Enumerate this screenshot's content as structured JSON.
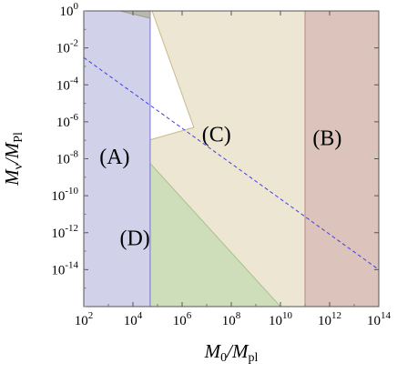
{
  "chart_data": {
    "type": "area",
    "x_scale": "log",
    "y_scale": "log",
    "x_label": {
      "main": "M",
      "sub1": "0",
      "sep": "/M",
      "sub2": "pl"
    },
    "y_label": {
      "main": "M",
      "sub1": "ν",
      "sep": "/M",
      "sub2": "Pl"
    },
    "x_range": [
      100,
      100000000000000
    ],
    "y_range": [
      1e-16,
      1
    ],
    "x_ticks": [
      {
        "value": 100,
        "base": "10",
        "exp": "2"
      },
      {
        "value": 10000,
        "base": "10",
        "exp": "4"
      },
      {
        "value": 1000000,
        "base": "10",
        "exp": "6"
      },
      {
        "value": 100000000,
        "base": "10",
        "exp": "8"
      },
      {
        "value": 10000000000,
        "base": "10",
        "exp": "10"
      },
      {
        "value": 1000000000000,
        "base": "10",
        "exp": "12"
      },
      {
        "value": 100000000000000,
        "base": "10",
        "exp": "14"
      }
    ],
    "y_ticks": [
      {
        "value": 1,
        "base": "10",
        "exp": "0"
      },
      {
        "value": 0.01,
        "base": "10",
        "exp": "-2"
      },
      {
        "value": 0.0001,
        "base": "10",
        "exp": "-4"
      },
      {
        "value": 1e-06,
        "base": "10",
        "exp": "-6"
      },
      {
        "value": 1e-08,
        "base": "10",
        "exp": "-8"
      },
      {
        "value": 1e-10,
        "base": "10",
        "exp": "-10"
      },
      {
        "value": 1e-12,
        "base": "10",
        "exp": "-12"
      },
      {
        "value": 1e-14,
        "base": "10",
        "exp": "-14"
      }
    ],
    "regions": [
      {
        "id": "beige",
        "fill": "#ece6d3",
        "stroke": "#c8b98a",
        "points": [
          [
            3000,
            1
          ],
          [
            100000000000,
            1
          ],
          [
            100000000000,
            1e-16
          ],
          [
            100,
            1e-16
          ],
          [
            100,
            1e-08
          ],
          [
            3000000,
            5e-07
          ],
          [
            60000,
            1
          ]
        ]
      },
      {
        "id": "B",
        "fill": "#dcc3bb",
        "stroke": "#b98a86",
        "points": [
          [
            100000000000,
            1
          ],
          [
            100000000000000,
            1
          ],
          [
            100000000000000,
            1e-16
          ],
          [
            100000000000,
            1e-16
          ]
        ]
      },
      {
        "id": "D",
        "fill": "#cfdeba",
        "stroke": "#a9c08e",
        "points": [
          [
            100,
            5e-05
          ],
          [
            100,
            1e-16
          ],
          [
            10000000000,
            1e-16
          ]
        ]
      },
      {
        "id": "A",
        "fill": "#d1d1ea",
        "stroke": "#7474c8",
        "points": [
          [
            100,
            1
          ],
          [
            50000,
            1
          ],
          [
            50000,
            1e-16
          ],
          [
            100,
            1e-16
          ]
        ]
      },
      {
        "id": "gray-notch",
        "fill": "#b9b7b0",
        "stroke": "#9f9c92",
        "points": [
          [
            3000,
            1
          ],
          [
            50000,
            1
          ],
          [
            50000,
            0.4
          ]
        ]
      }
    ],
    "dashed_line": {
      "color": "#4040e0",
      "points": [
        [
          100,
          0.003
        ],
        [
          100000000000000,
          1e-14
        ]
      ]
    },
    "region_labels": [
      {
        "text": "(A)",
        "x": 1800,
        "y": 1e-08
      },
      {
        "text": "(B)",
        "x": 800000000000,
        "y": 1e-07
      },
      {
        "text": "(C)",
        "x": 25000000,
        "y": 1.6e-07
      },
      {
        "text": "(D)",
        "x": 12000,
        "y": 4e-13
      }
    ]
  }
}
